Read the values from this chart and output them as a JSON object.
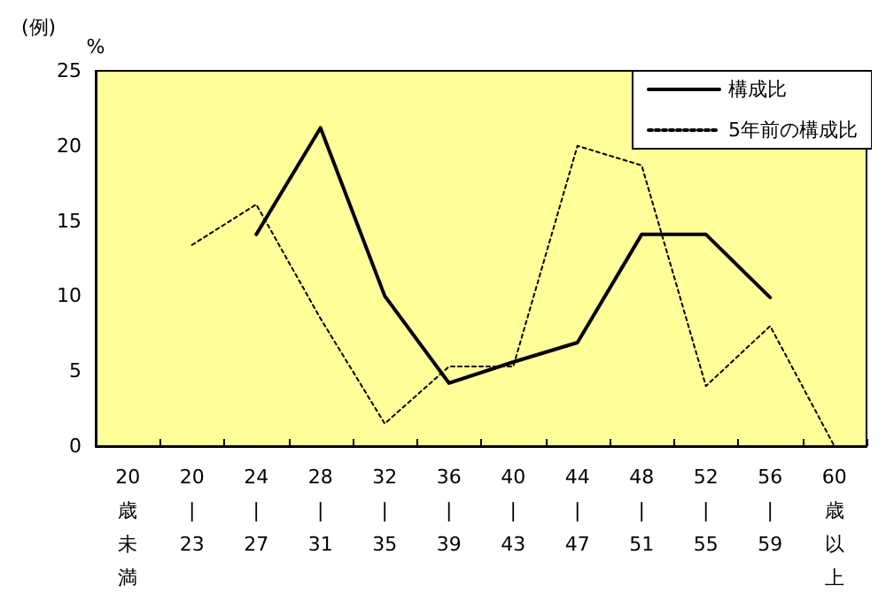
{
  "chart_data": {
    "type": "line",
    "ylabel": "%",
    "annotations": [
      "(例)"
    ],
    "categories": [
      "20歳未満",
      "20\n|\n23",
      "24\n|\n27",
      "28\n|\n31",
      "32\n|\n35",
      "36\n|\n39",
      "40\n|\n43",
      "44\n|\n47",
      "48\n|\n51",
      "52\n|\n55",
      "56\n|\n59",
      "60歳以上"
    ],
    "series": [
      {
        "name": "構成比",
        "color": "#000000",
        "line_style": "solid",
        "values": [
          null,
          null,
          14.1,
          21.2,
          10.0,
          4.2,
          5.6,
          6.9,
          14.1,
          14.1,
          9.9,
          null
        ]
      },
      {
        "name": "5年前の構成比",
        "color": "#000000",
        "line_style": "dotted",
        "values": [
          null,
          13.4,
          16.1,
          8.5,
          1.5,
          5.3,
          5.3,
          20.0,
          18.7,
          4.0,
          8.0,
          0
        ]
      }
    ],
    "ylim": [
      0,
      25
    ],
    "yticks": [
      0,
      5,
      10,
      15,
      20,
      25
    ],
    "grid": false,
    "legend": "top right",
    "marker": "none"
  }
}
